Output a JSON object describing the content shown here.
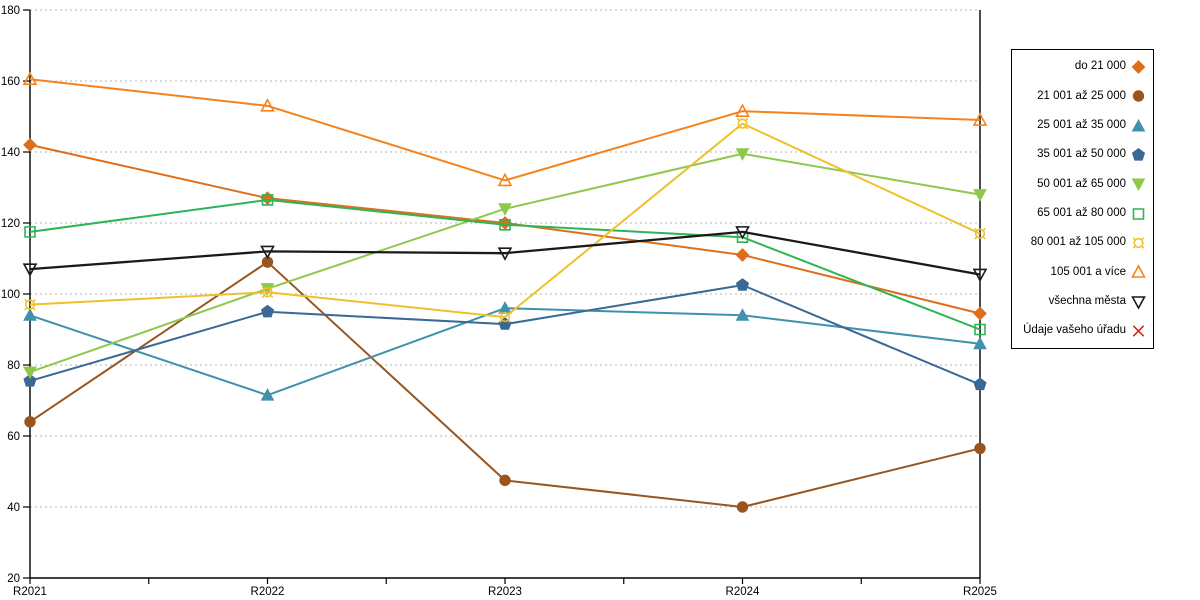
{
  "chart_data": {
    "type": "line",
    "title": "",
    "xlabel": "",
    "ylabel": "",
    "x_categories": [
      "R2021",
      "R2022",
      "R2023",
      "R2024",
      "R2025"
    ],
    "ylim": [
      20,
      180
    ],
    "y_tick_step": 20,
    "y_tick_labels": [
      "20",
      "40",
      "60",
      "80",
      "100",
      "120",
      "140",
      "160",
      "180"
    ],
    "grid": "horizontal-dashed",
    "legend_position": "right-outside",
    "axis_color": "#000000",
    "gridline_color": "#b5b5b5",
    "series": [
      {
        "name": "do 21 000",
        "color": "#DE6E1A",
        "marker": "diamond",
        "filled": true,
        "values": [
          142,
          127,
          120,
          111,
          94.5
        ]
      },
      {
        "name": "21 001 až 25 000",
        "color": "#99551D",
        "marker": "circle",
        "filled": true,
        "values": [
          64,
          109,
          47.5,
          40,
          56.5
        ]
      },
      {
        "name": "25 001 až 35 000",
        "color": "#3E92AC",
        "marker": "triangle-up",
        "filled": true,
        "values": [
          94,
          71.5,
          96,
          94,
          86
        ]
      },
      {
        "name": "35 001 až 50 000",
        "color": "#3A6897",
        "marker": "pentagon",
        "filled": true,
        "values": [
          75.5,
          95,
          91.5,
          102.5,
          74.5
        ]
      },
      {
        "name": "50 001 až 65 000",
        "color": "#8DC84B",
        "marker": "triangle-down",
        "filled": true,
        "values": [
          78,
          101.5,
          124,
          139.5,
          128
        ]
      },
      {
        "name": "65 001 až 80 000",
        "color": "#2EB357",
        "marker": "square",
        "filled": false,
        "values": [
          117.5,
          126.5,
          119.5,
          116,
          90
        ]
      },
      {
        "name": "80 001 až 105 000",
        "color": "#EFC02B",
        "marker": "sun-circle",
        "filled": false,
        "values": [
          97,
          100.5,
          93.5,
          148,
          117
        ]
      },
      {
        "name": "105 001 a více",
        "color": "#F5831D",
        "marker": "triangle-up",
        "filled": false,
        "values": [
          160.5,
          153,
          132,
          151.5,
          149
        ]
      },
      {
        "name": "všechna města",
        "color": "#1A1A1A",
        "marker": "triangle-down",
        "filled": false,
        "values": [
          107,
          112,
          111.5,
          117.5,
          105.5
        ]
      },
      {
        "name": "Údaje vašeho úřadu",
        "color": "#CF2A1B",
        "marker": "x",
        "filled": false,
        "values": []
      }
    ]
  }
}
